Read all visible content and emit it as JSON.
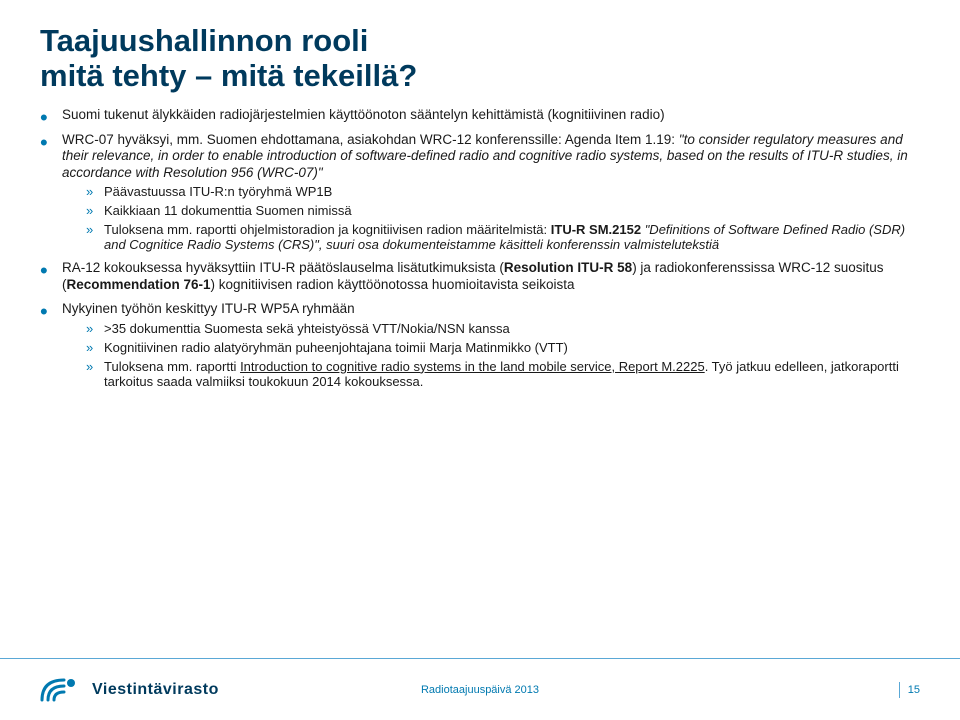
{
  "colors": {
    "title": "#003a5d",
    "accent": "#0079b0",
    "bodyText": "#1a1a1a",
    "footerRule": "#5aa8d6",
    "footerText": "#0079b0",
    "logoText": "#003a5d"
  },
  "fontSizes": {
    "title": 31,
    "body": 13.5,
    "sub": 13,
    "footer": 11,
    "logoText": 16
  },
  "title": {
    "line1": "Taajuushallinnon rooli",
    "line2": "mitä tehty – mitä tekeillä?"
  },
  "bullets": [
    {
      "text": "Suomi tukenut älykkäiden radiojärjestelmien käyttöönoton sääntelyn kehittämistä (kognitiivinen radio)"
    },
    {
      "prefix": "WRC-07 hyväksyi, mm. Suomen ehdottamana, asiakohdan WRC-12 konferenssille: Agenda Item 1.19: ",
      "italic": "\"to consider regulatory measures and their relevance, in order to enable introduction of software-defined radio and cognitive radio systems, based on the results of ITU-R studies, in accordance with Resolution 956 (WRC-07)\"",
      "subs": [
        {
          "text": "Päävastuussa ITU-R:n työryhmä  WP1B"
        },
        {
          "text": "Kaikkiaan 11 dokumenttia Suomen nimissä"
        },
        {
          "prefix": "Tuloksena mm. raportti ohjelmistoradion ja kognitiivisen radion määritelmistä: ",
          "boldPart": "ITU-R SM.2152",
          "restItalic": " \"Definitions of Software Defined Radio (SDR) and Cognitice Radio Systems (CRS)\", suuri osa dokumenteistamme käsitteli konferenssin valmistelutekstiä"
        }
      ]
    },
    {
      "compound": [
        {
          "t": "RA-12 kokouksessa hyväksyttiin ITU-R päätöslauselma lisätutkimuksista ("
        },
        {
          "t": "Resolution ITU-R 58",
          "bold": true
        },
        {
          "t": ") ja radiokonferenssissa WRC-12 suositus ("
        },
        {
          "t": "Recommendation 76-1",
          "bold": true
        },
        {
          "t": ") kognitiivisen radion käyttöönotossa huomioitavista seikoista"
        }
      ]
    },
    {
      "text": "Nykyinen työhön keskittyy ITU-R WP5A ryhmään",
      "subs": [
        {
          "text": ">35 dokumenttia Suomesta sekä yhteistyössä VTT/Nokia/NSN kanssa"
        },
        {
          "text": "Kognitiivinen radio alatyöryhmän puheenjohtajana toimii Marja Matinmikko (VTT)"
        },
        {
          "parts": [
            {
              "t": "Tuloksena mm. raportti "
            },
            {
              "t": "Introduction to cognitive radio systems in the land mobile service, Report M.2225",
              "ul": true
            },
            {
              "t": ". Työ jatkuu edelleen, jatkoraportti tarkoitus saada valmiiksi toukokuun 2014 kokouksessa."
            }
          ]
        }
      ]
    }
  ],
  "footer": {
    "logoText": "Viestintävirasto",
    "mid": "Radiotaajuuspäivä 2013",
    "pageNum": "15"
  }
}
